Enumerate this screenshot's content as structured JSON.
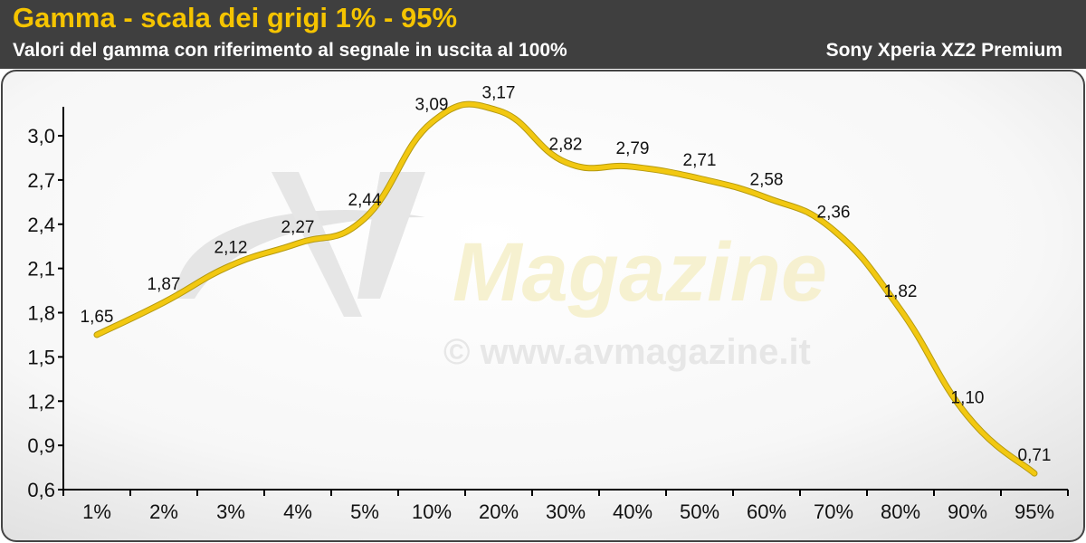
{
  "header": {
    "title": "Gamma - scala dei grigi 1% - 95%",
    "subtitle": "Valori del gamma con riferimento al segnale in uscita al 100%",
    "device": "Sony Xperia XZ2 Premium"
  },
  "watermark": {
    "logo_text": "Magazine",
    "url_text": "© www.avmagazine.it"
  },
  "colors": {
    "header_bg": "#3f3f3f",
    "title": "#f5c400",
    "line": "#f2c811",
    "line_outline": "#b59a10"
  },
  "chart_data": {
    "type": "line",
    "title": "Gamma - scala dei grigi 1% - 95%",
    "subtitle": "Valori del gamma con riferimento al segnale in uscita al 100%",
    "categories": [
      "1%",
      "2%",
      "3%",
      "4%",
      "5%",
      "10%",
      "20%",
      "30%",
      "40%",
      "50%",
      "60%",
      "70%",
      "80%",
      "90%",
      "95%"
    ],
    "series": [
      {
        "name": "Sony Xperia XZ2 Premium",
        "values": [
          1.65,
          1.87,
          2.12,
          2.27,
          2.44,
          3.09,
          3.17,
          2.82,
          2.79,
          2.71,
          2.58,
          2.36,
          1.82,
          1.1,
          0.71
        ],
        "labels": [
          "1,65",
          "1,87",
          "2,12",
          "2,27",
          "2,44",
          "3,09",
          "3,17",
          "2,82",
          "2,79",
          "2,71",
          "2,58",
          "2,36",
          "1,82",
          "1,10",
          "0,71"
        ]
      }
    ],
    "y_ticks": [
      "0,6",
      "0,9",
      "1,2",
      "1,5",
      "1,8",
      "2,1",
      "2,4",
      "2,7",
      "3,0"
    ],
    "y_tick_values": [
      0.6,
      0.9,
      1.2,
      1.5,
      1.8,
      2.1,
      2.4,
      2.7,
      3.0
    ],
    "ylim": [
      0.6,
      3.3
    ],
    "grid": false,
    "legend": "none"
  }
}
